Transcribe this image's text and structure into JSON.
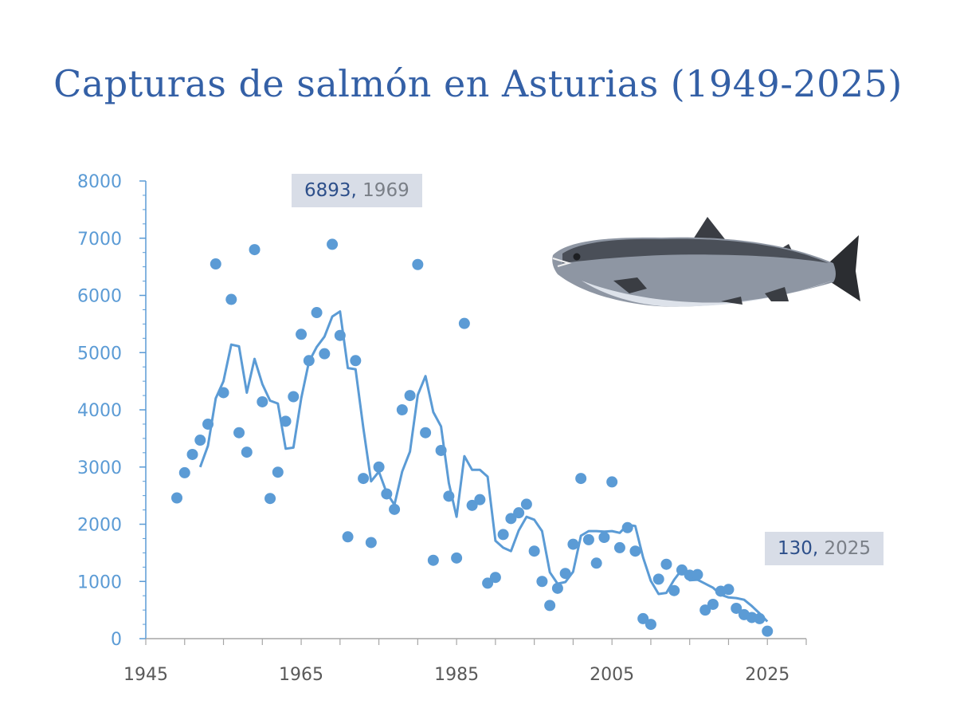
{
  "title": "Capturas de salmón en Asturias (1949-2025)",
  "colors": {
    "title": "#3460a6",
    "series": "#5b9bd5",
    "y_ticks": "#5b9bd5",
    "x_ticks": "#595959",
    "badge_bg": "#d8dde7"
  },
  "icons": {
    "fish": "salmon-illustration"
  },
  "annotations": {
    "max": {
      "value": "6893",
      "sep": ",",
      "year": "1969"
    },
    "last": {
      "value": "130",
      "sep": ",",
      "year": "2025"
    }
  },
  "chart_data": {
    "type": "scatter",
    "title": "Capturas de salmón en Asturias (1949-2025)",
    "xlabel": "",
    "ylabel": "",
    "xlim": [
      1945,
      2030
    ],
    "ylim": [
      0,
      8000
    ],
    "x_ticks": [
      1945,
      1965,
      1985,
      2005,
      2025
    ],
    "y_ticks": [
      0,
      1000,
      2000,
      3000,
      4000,
      5000,
      6000,
      7000,
      8000
    ],
    "grid": false,
    "series": [
      {
        "kind": "points",
        "x": [
          1949,
          1950,
          1951,
          1952,
          1953,
          1954,
          1955,
          1956,
          1957,
          1958,
          1959,
          1960,
          1961,
          1962,
          1963,
          1964,
          1965,
          1966,
          1967,
          1968,
          1969,
          1970,
          1971,
          1972,
          1973,
          1974,
          1975,
          1976,
          1977,
          1978,
          1979,
          1980,
          1981,
          1982,
          1983,
          1984,
          1985,
          1986,
          1987,
          1988,
          1989,
          1990,
          1991,
          1992,
          1993,
          1994,
          1995,
          1996,
          1997,
          1998,
          1999,
          2000,
          2001,
          2002,
          2003,
          2004,
          2005,
          2006,
          2007,
          2008,
          2009,
          2010,
          2011,
          2012,
          2013,
          2014,
          2015,
          2016,
          2017,
          2018,
          2019,
          2020,
          2021,
          2022,
          2023,
          2024,
          2025
        ],
        "y": [
          2460,
          2900,
          3220,
          3470,
          3750,
          6550,
          4300,
          5930,
          3600,
          3260,
          6800,
          4140,
          2450,
          2910,
          3800,
          4230,
          5320,
          4860,
          5700,
          4980,
          6893,
          5300,
          1780,
          4860,
          2800,
          1680,
          3000,
          2530,
          2260,
          4000,
          4250,
          6540,
          3600,
          1370,
          3290,
          2490,
          1410,
          5510,
          2330,
          2430,
          970,
          1070,
          1820,
          2100,
          2200,
          2350,
          1530,
          1000,
          580,
          880,
          1140,
          1650,
          2800,
          1730,
          1320,
          1770,
          2740,
          1590,
          1940,
          1530,
          350,
          250,
          1040,
          1300,
          840,
          1200,
          1110,
          1120,
          500,
          600,
          830,
          860,
          530,
          420,
          370,
          350,
          130
        ]
      },
      {
        "kind": "moving_average",
        "x": [
          1952,
          1953,
          1954,
          1955,
          1956,
          1957,
          1958,
          1959,
          1960,
          1961,
          1962,
          1963,
          1964,
          1965,
          1966,
          1967,
          1968,
          1969,
          1970,
          1971,
          1972,
          1973,
          1974,
          1975,
          1976,
          1977,
          1978,
          1979,
          1980,
          1981,
          1982,
          1983,
          1984,
          1985,
          1986,
          1987,
          1988,
          1989,
          1990,
          1991,
          1992,
          1993,
          1994,
          1995,
          1996,
          1997,
          1998,
          1999,
          2000,
          2001,
          2002,
          2003,
          2004,
          2005,
          2006,
          2007,
          2008,
          2009,
          2010,
          2011,
          2012,
          2013,
          2014,
          2015,
          2016,
          2017,
          2018,
          2019,
          2020,
          2021,
          2022,
          2023,
          2024,
          2025
        ],
        "y": [
          3000,
          3370,
          4200,
          4500,
          5140,
          5110,
          4300,
          4890,
          4450,
          4160,
          4110,
          3320,
          3340,
          4200,
          4840,
          5100,
          5280,
          5630,
          5720,
          4730,
          4710,
          3680,
          2750,
          2920,
          2550,
          2340,
          2920,
          3270,
          4260,
          4590,
          3960,
          3710,
          2720,
          2130,
          3190,
          2950,
          2950,
          2830,
          1710,
          1590,
          1530,
          1890,
          2130,
          2080,
          1880,
          1160,
          960,
          990,
          1170,
          1800,
          1880,
          1880,
          1870,
          1880,
          1850,
          1990,
          1970,
          1420,
          1010,
          780,
          800,
          1030,
          1210,
          1020,
          1030,
          960,
          890,
          770,
          720,
          710,
          680,
          570,
          440,
          300
        ]
      }
    ]
  }
}
